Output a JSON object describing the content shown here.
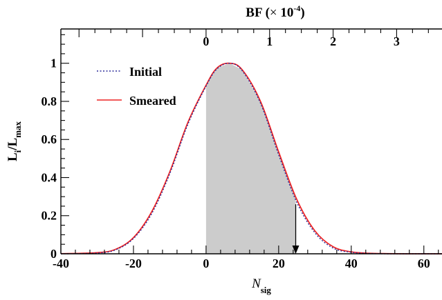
{
  "chart_data": {
    "type": "line",
    "xlabel": "N",
    "xlabel_sub": "sig",
    "ylabel_parts": [
      "L",
      "i",
      "/L",
      "max"
    ],
    "top_axis": {
      "label_prefix": "BF (",
      "label_times": "×",
      "label_ten": "10",
      "label_exp": "-4",
      "label_suffix": ")",
      "ticks": [
        "0",
        "1",
        "2",
        "3"
      ],
      "tick_positions_nsig": [
        0,
        17.5,
        35,
        52.5
      ]
    },
    "xlim": [
      -40,
      65
    ],
    "ylim": [
      0,
      1.18
    ],
    "x_ticks": [
      -40,
      -20,
      0,
      20,
      40,
      60
    ],
    "y_ticks": [
      0,
      0.2,
      0.4,
      0.6,
      0.8,
      1
    ],
    "x_tick_labels": [
      "-40",
      "-20",
      "0",
      "20",
      "40",
      "60"
    ],
    "y_tick_labels": [
      "0",
      "0.2",
      "0.4",
      "0.6",
      "0.8",
      "1"
    ],
    "series": [
      {
        "name": "Initial",
        "color": "#2a2a9a",
        "style": "dotted",
        "x": [
          -40,
          -30,
          -25,
          -20,
          -15,
          -10,
          -5,
          0,
          3,
          6.5,
          10,
          15,
          20,
          25,
          30,
          35,
          40,
          45,
          50,
          55,
          60,
          65
        ],
        "y": [
          0.0,
          0.004,
          0.02,
          0.08,
          0.21,
          0.42,
          0.68,
          0.88,
          0.97,
          1.0,
          0.96,
          0.79,
          0.52,
          0.27,
          0.11,
          0.03,
          0.008,
          0.002,
          0.0,
          0.0,
          0.0,
          0.0
        ]
      },
      {
        "name": "Smeared",
        "color": "#ee2222",
        "style": "solid",
        "x": [
          -40,
          -30,
          -25,
          -20,
          -15,
          -10,
          -5,
          0,
          3,
          6.5,
          10,
          15,
          20,
          25,
          30,
          35,
          40,
          45,
          50,
          55,
          60,
          65
        ],
        "y": [
          0.001,
          0.006,
          0.023,
          0.085,
          0.22,
          0.43,
          0.69,
          0.885,
          0.975,
          1.0,
          0.965,
          0.8,
          0.535,
          0.285,
          0.12,
          0.037,
          0.01,
          0.003,
          0.001,
          0.0,
          0.0,
          0.0
        ]
      }
    ],
    "shaded_region": {
      "x_from": 0,
      "x_to": 24.7,
      "color": "#cccccc"
    },
    "limit_arrow": {
      "x": 24.7,
      "y_top": 0.26,
      "y_bottom": 0.0
    },
    "legend": {
      "placement": "top-left"
    },
    "grid": false
  }
}
